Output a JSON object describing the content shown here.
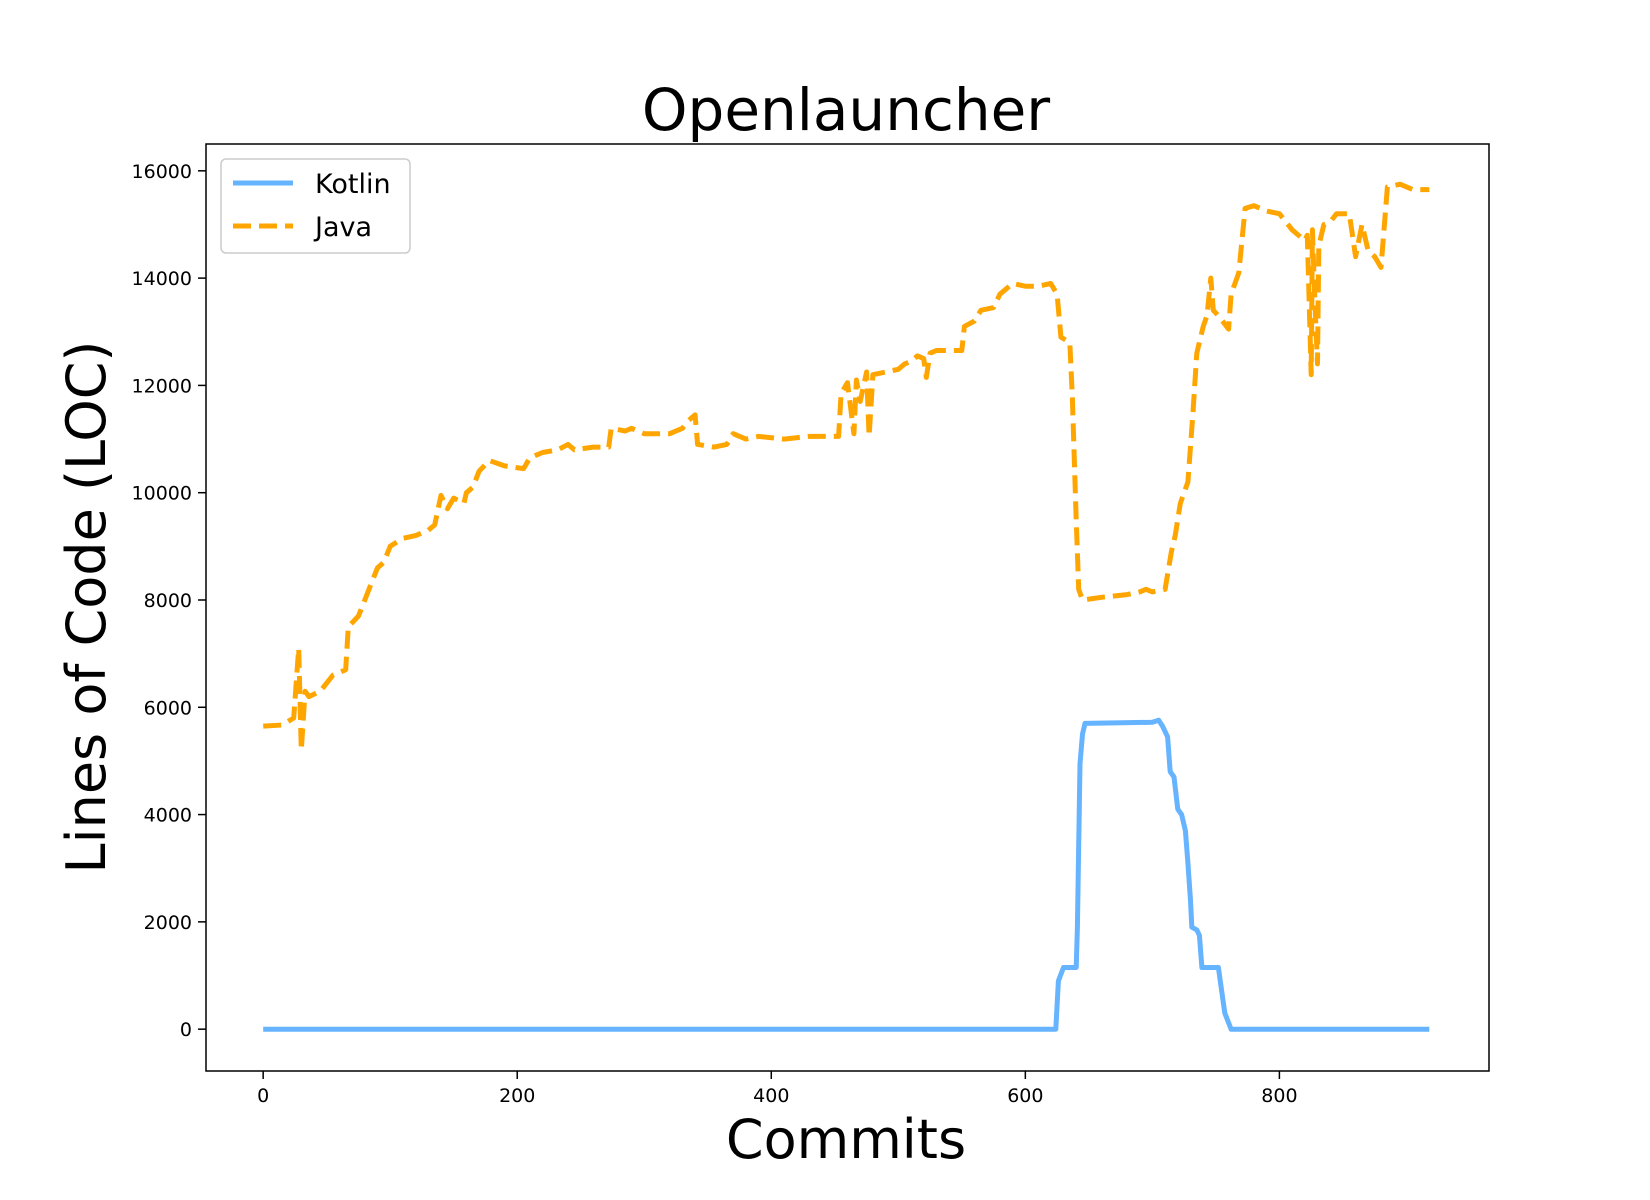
{
  "chart_data": {
    "type": "line",
    "title": "Openlauncher",
    "xlabel": "Commits",
    "ylabel": "Lines of Code (LOC)",
    "xlim": [
      -45,
      965
    ],
    "ylim": [
      -780,
      16500
    ],
    "xticks": [
      0,
      200,
      400,
      600,
      800
    ],
    "yticks": [
      0,
      2000,
      4000,
      6000,
      8000,
      10000,
      12000,
      14000,
      16000
    ],
    "grid": false,
    "legend_position": "upper-left",
    "series": [
      {
        "name": "Kotlin",
        "color": "#66b3ff",
        "style": "solid",
        "points": [
          [
            0,
            0
          ],
          [
            624,
            0
          ],
          [
            626,
            900
          ],
          [
            630,
            1150
          ],
          [
            640,
            1150
          ],
          [
            641,
            1900
          ],
          [
            643,
            4950
          ],
          [
            645,
            5500
          ],
          [
            647,
            5700
          ],
          [
            700,
            5720
          ],
          [
            705,
            5760
          ],
          [
            708,
            5650
          ],
          [
            712,
            5450
          ],
          [
            714,
            4800
          ],
          [
            717,
            4700
          ],
          [
            720,
            4100
          ],
          [
            723,
            4000
          ],
          [
            726,
            3700
          ],
          [
            728,
            3100
          ],
          [
            730,
            2400
          ],
          [
            731,
            1900
          ],
          [
            735,
            1850
          ],
          [
            737,
            1750
          ],
          [
            739,
            1150
          ],
          [
            752,
            1150
          ],
          [
            754,
            800
          ],
          [
            757,
            300
          ],
          [
            762,
            0
          ],
          [
            918,
            0
          ]
        ]
      },
      {
        "name": "Java",
        "color": "#ffa500",
        "style": "dashed",
        "points": [
          [
            0,
            5650
          ],
          [
            15,
            5670
          ],
          [
            24,
            5800
          ],
          [
            28,
            7100
          ],
          [
            30,
            5200
          ],
          [
            33,
            6300
          ],
          [
            36,
            6200
          ],
          [
            45,
            6300
          ],
          [
            55,
            6600
          ],
          [
            65,
            6700
          ],
          [
            67,
            7500
          ],
          [
            75,
            7700
          ],
          [
            80,
            8000
          ],
          [
            85,
            8300
          ],
          [
            90,
            8600
          ],
          [
            95,
            8700
          ],
          [
            100,
            9000
          ],
          [
            110,
            9150
          ],
          [
            120,
            9200
          ],
          [
            130,
            9300
          ],
          [
            135,
            9400
          ],
          [
            140,
            9950
          ],
          [
            145,
            9700
          ],
          [
            150,
            9900
          ],
          [
            158,
            9800
          ],
          [
            160,
            10000
          ],
          [
            165,
            10100
          ],
          [
            170,
            10400
          ],
          [
            178,
            10600
          ],
          [
            190,
            10500
          ],
          [
            205,
            10450
          ],
          [
            210,
            10650
          ],
          [
            220,
            10750
          ],
          [
            232,
            10800
          ],
          [
            240,
            10900
          ],
          [
            245,
            10800
          ],
          [
            260,
            10850
          ],
          [
            272,
            10850
          ],
          [
            274,
            11200
          ],
          [
            285,
            11150
          ],
          [
            290,
            11200
          ],
          [
            300,
            11100
          ],
          [
            320,
            11100
          ],
          [
            330,
            11200
          ],
          [
            335,
            11350
          ],
          [
            340,
            11450
          ],
          [
            342,
            10900
          ],
          [
            355,
            10850
          ],
          [
            365,
            10900
          ],
          [
            370,
            11100
          ],
          [
            380,
            11000
          ],
          [
            390,
            11050
          ],
          [
            410,
            11000
          ],
          [
            430,
            11050
          ],
          [
            450,
            11050
          ],
          [
            453,
            11050
          ],
          [
            455,
            11850
          ],
          [
            460,
            12050
          ],
          [
            465,
            11100
          ],
          [
            467,
            12100
          ],
          [
            470,
            11700
          ],
          [
            475,
            12250
          ],
          [
            477,
            11050
          ],
          [
            480,
            12200
          ],
          [
            500,
            12300
          ],
          [
            505,
            12400
          ],
          [
            510,
            12450
          ],
          [
            515,
            12550
          ],
          [
            520,
            12500
          ],
          [
            522,
            12150
          ],
          [
            525,
            12600
          ],
          [
            530,
            12650
          ],
          [
            550,
            12650
          ],
          [
            552,
            13100
          ],
          [
            560,
            13200
          ],
          [
            565,
            13400
          ],
          [
            575,
            13450
          ],
          [
            580,
            13700
          ],
          [
            585,
            13800
          ],
          [
            590,
            13900
          ],
          [
            600,
            13850
          ],
          [
            610,
            13850
          ],
          [
            620,
            13900
          ],
          [
            625,
            13700
          ],
          [
            628,
            12900
          ],
          [
            635,
            12800
          ],
          [
            637,
            11800
          ],
          [
            640,
            9500
          ],
          [
            642,
            8200
          ],
          [
            645,
            8000
          ],
          [
            660,
            8050
          ],
          [
            680,
            8100
          ],
          [
            690,
            8150
          ],
          [
            695,
            8200
          ],
          [
            700,
            8150
          ],
          [
            710,
            8200
          ],
          [
            715,
            8900
          ],
          [
            718,
            9200
          ],
          [
            722,
            9800
          ],
          [
            725,
            10000
          ],
          [
            728,
            10200
          ],
          [
            732,
            11500
          ],
          [
            735,
            12600
          ],
          [
            740,
            13100
          ],
          [
            743,
            13300
          ],
          [
            746,
            14000
          ],
          [
            748,
            13400
          ],
          [
            752,
            13300
          ],
          [
            760,
            13050
          ],
          [
            762,
            13700
          ],
          [
            768,
            14100
          ],
          [
            773,
            15300
          ],
          [
            780,
            15350
          ],
          [
            790,
            15250
          ],
          [
            800,
            15200
          ],
          [
            810,
            14900
          ],
          [
            820,
            14700
          ],
          [
            822,
            14800
          ],
          [
            825,
            12200
          ],
          [
            826,
            14900
          ],
          [
            828,
            13500
          ],
          [
            830,
            12400
          ],
          [
            831,
            14600
          ],
          [
            835,
            15000
          ],
          [
            840,
            15050
          ],
          [
            845,
            15200
          ],
          [
            855,
            15200
          ],
          [
            860,
            14400
          ],
          [
            865,
            15000
          ],
          [
            870,
            14500
          ],
          [
            875,
            14400
          ],
          [
            880,
            14200
          ],
          [
            885,
            15700
          ],
          [
            895,
            15750
          ],
          [
            905,
            15650
          ],
          [
            918,
            15650
          ]
        ]
      }
    ]
  }
}
